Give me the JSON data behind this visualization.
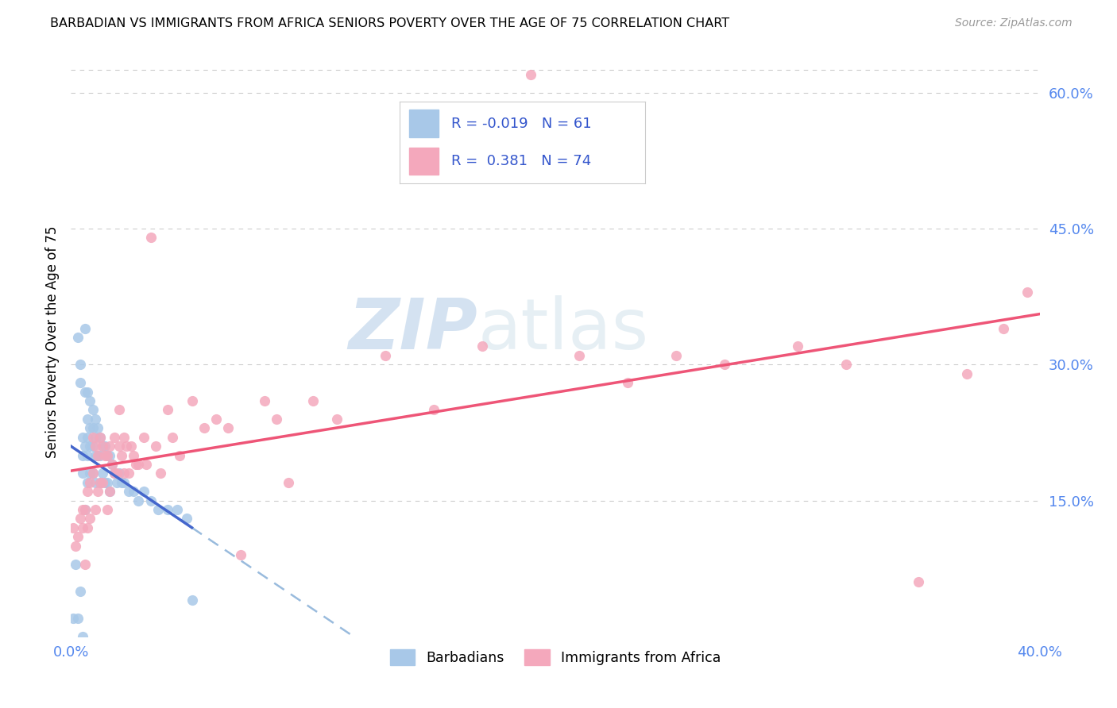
{
  "title": "BARBADIAN VS IMMIGRANTS FROM AFRICA SENIORS POVERTY OVER THE AGE OF 75 CORRELATION CHART",
  "source": "Source: ZipAtlas.com",
  "ylabel": "Seniors Poverty Over the Age of 75",
  "xlim": [
    0.0,
    0.4
  ],
  "ylim": [
    0.0,
    0.65
  ],
  "right_yticks": [
    0.15,
    0.3,
    0.45,
    0.6
  ],
  "right_ytick_labels": [
    "15.0%",
    "30.0%",
    "45.0%",
    "60.0%"
  ],
  "barbadian_color": "#a8c8e8",
  "africa_color": "#f4a8bc",
  "barbadian_line_color": "#4466cc",
  "africa_line_color": "#ee5577",
  "barbadian_dash_color": "#99bbdd",
  "R_barbadian": -0.019,
  "N_barbadian": 61,
  "R_africa": 0.381,
  "N_africa": 74,
  "legend_label_1": "Barbadians",
  "legend_label_2": "Immigrants from Africa",
  "watermark_zip": "ZIP",
  "watermark_atlas": "atlas",
  "background_color": "#ffffff",
  "barbadian_x": [
    0.001,
    0.002,
    0.003,
    0.003,
    0.004,
    0.004,
    0.004,
    0.005,
    0.005,
    0.005,
    0.005,
    0.006,
    0.006,
    0.006,
    0.006,
    0.007,
    0.007,
    0.007,
    0.007,
    0.007,
    0.008,
    0.008,
    0.008,
    0.008,
    0.009,
    0.009,
    0.009,
    0.009,
    0.01,
    0.01,
    0.01,
    0.01,
    0.011,
    0.011,
    0.012,
    0.012,
    0.012,
    0.013,
    0.013,
    0.014,
    0.014,
    0.015,
    0.015,
    0.016,
    0.016,
    0.017,
    0.018,
    0.019,
    0.02,
    0.021,
    0.022,
    0.024,
    0.026,
    0.028,
    0.03,
    0.033,
    0.036,
    0.04,
    0.044,
    0.048,
    0.05
  ],
  "barbadian_y": [
    0.02,
    0.08,
    0.02,
    0.33,
    0.3,
    0.05,
    0.28,
    0.22,
    0.2,
    0.18,
    0.0,
    0.34,
    0.27,
    0.21,
    0.14,
    0.27,
    0.24,
    0.22,
    0.2,
    0.17,
    0.26,
    0.23,
    0.21,
    0.18,
    0.25,
    0.23,
    0.21,
    0.18,
    0.24,
    0.22,
    0.2,
    0.17,
    0.23,
    0.2,
    0.22,
    0.2,
    0.17,
    0.21,
    0.18,
    0.21,
    0.17,
    0.2,
    0.17,
    0.2,
    0.16,
    0.19,
    0.18,
    0.17,
    0.18,
    0.17,
    0.17,
    0.16,
    0.16,
    0.15,
    0.16,
    0.15,
    0.14,
    0.14,
    0.14,
    0.13,
    0.04
  ],
  "africa_x": [
    0.001,
    0.002,
    0.003,
    0.004,
    0.005,
    0.005,
    0.006,
    0.006,
    0.007,
    0.007,
    0.008,
    0.008,
    0.009,
    0.009,
    0.01,
    0.01,
    0.011,
    0.011,
    0.012,
    0.012,
    0.013,
    0.013,
    0.014,
    0.015,
    0.015,
    0.016,
    0.016,
    0.017,
    0.018,
    0.018,
    0.019,
    0.02,
    0.02,
    0.021,
    0.022,
    0.022,
    0.023,
    0.024,
    0.025,
    0.026,
    0.027,
    0.028,
    0.03,
    0.031,
    0.033,
    0.035,
    0.037,
    0.04,
    0.042,
    0.045,
    0.05,
    0.055,
    0.06,
    0.065,
    0.07,
    0.08,
    0.085,
    0.09,
    0.1,
    0.11,
    0.13,
    0.15,
    0.17,
    0.19,
    0.21,
    0.23,
    0.25,
    0.27,
    0.3,
    0.32,
    0.35,
    0.37,
    0.385,
    0.395
  ],
  "africa_y": [
    0.12,
    0.1,
    0.11,
    0.13,
    0.12,
    0.14,
    0.14,
    0.08,
    0.16,
    0.12,
    0.17,
    0.13,
    0.22,
    0.18,
    0.21,
    0.14,
    0.2,
    0.16,
    0.22,
    0.17,
    0.21,
    0.17,
    0.2,
    0.2,
    0.14,
    0.21,
    0.16,
    0.19,
    0.22,
    0.18,
    0.18,
    0.25,
    0.21,
    0.2,
    0.22,
    0.18,
    0.21,
    0.18,
    0.21,
    0.2,
    0.19,
    0.19,
    0.22,
    0.19,
    0.44,
    0.21,
    0.18,
    0.25,
    0.22,
    0.2,
    0.26,
    0.23,
    0.24,
    0.23,
    0.09,
    0.26,
    0.24,
    0.17,
    0.26,
    0.24,
    0.31,
    0.25,
    0.32,
    0.62,
    0.31,
    0.28,
    0.31,
    0.3,
    0.32,
    0.3,
    0.06,
    0.29,
    0.34,
    0.38
  ]
}
